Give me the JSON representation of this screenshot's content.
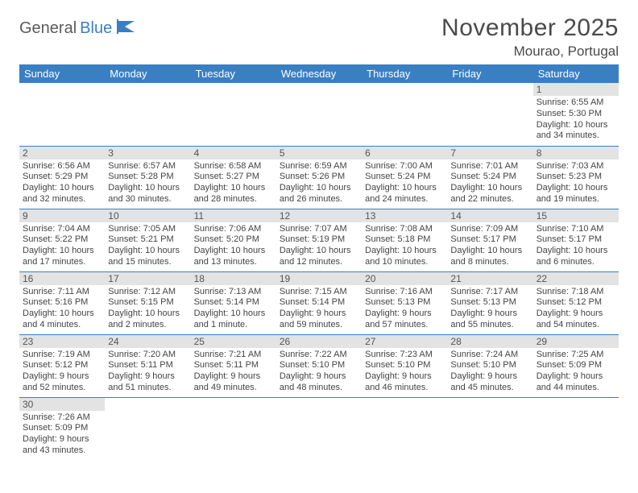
{
  "logo": {
    "text1": "General",
    "text2": "Blue"
  },
  "title": "November 2025",
  "location": "Mourao, Portugal",
  "weekdays": [
    "Sunday",
    "Monday",
    "Tuesday",
    "Wednesday",
    "Thursday",
    "Friday",
    "Saturday"
  ],
  "colors": {
    "header_bg": "#3a7fc2",
    "header_text": "#ffffff",
    "daynum_bg": "#e3e3e3",
    "rule": "#3a7fc2",
    "logo_gray": "#5b5b5b",
    "logo_blue": "#3a7fc2"
  },
  "days": [
    {
      "n": 1,
      "sunrise": "6:55 AM",
      "sunset": "5:30 PM",
      "daylight": "10 hours and 34 minutes."
    },
    {
      "n": 2,
      "sunrise": "6:56 AM",
      "sunset": "5:29 PM",
      "daylight": "10 hours and 32 minutes."
    },
    {
      "n": 3,
      "sunrise": "6:57 AM",
      "sunset": "5:28 PM",
      "daylight": "10 hours and 30 minutes."
    },
    {
      "n": 4,
      "sunrise": "6:58 AM",
      "sunset": "5:27 PM",
      "daylight": "10 hours and 28 minutes."
    },
    {
      "n": 5,
      "sunrise": "6:59 AM",
      "sunset": "5:26 PM",
      "daylight": "10 hours and 26 minutes."
    },
    {
      "n": 6,
      "sunrise": "7:00 AM",
      "sunset": "5:24 PM",
      "daylight": "10 hours and 24 minutes."
    },
    {
      "n": 7,
      "sunrise": "7:01 AM",
      "sunset": "5:24 PM",
      "daylight": "10 hours and 22 minutes."
    },
    {
      "n": 8,
      "sunrise": "7:03 AM",
      "sunset": "5:23 PM",
      "daylight": "10 hours and 19 minutes."
    },
    {
      "n": 9,
      "sunrise": "7:04 AM",
      "sunset": "5:22 PM",
      "daylight": "10 hours and 17 minutes."
    },
    {
      "n": 10,
      "sunrise": "7:05 AM",
      "sunset": "5:21 PM",
      "daylight": "10 hours and 15 minutes."
    },
    {
      "n": 11,
      "sunrise": "7:06 AM",
      "sunset": "5:20 PM",
      "daylight": "10 hours and 13 minutes."
    },
    {
      "n": 12,
      "sunrise": "7:07 AM",
      "sunset": "5:19 PM",
      "daylight": "10 hours and 12 minutes."
    },
    {
      "n": 13,
      "sunrise": "7:08 AM",
      "sunset": "5:18 PM",
      "daylight": "10 hours and 10 minutes."
    },
    {
      "n": 14,
      "sunrise": "7:09 AM",
      "sunset": "5:17 PM",
      "daylight": "10 hours and 8 minutes."
    },
    {
      "n": 15,
      "sunrise": "7:10 AM",
      "sunset": "5:17 PM",
      "daylight": "10 hours and 6 minutes."
    },
    {
      "n": 16,
      "sunrise": "7:11 AM",
      "sunset": "5:16 PM",
      "daylight": "10 hours and 4 minutes."
    },
    {
      "n": 17,
      "sunrise": "7:12 AM",
      "sunset": "5:15 PM",
      "daylight": "10 hours and 2 minutes."
    },
    {
      "n": 18,
      "sunrise": "7:13 AM",
      "sunset": "5:14 PM",
      "daylight": "10 hours and 1 minute."
    },
    {
      "n": 19,
      "sunrise": "7:15 AM",
      "sunset": "5:14 PM",
      "daylight": "9 hours and 59 minutes."
    },
    {
      "n": 20,
      "sunrise": "7:16 AM",
      "sunset": "5:13 PM",
      "daylight": "9 hours and 57 minutes."
    },
    {
      "n": 21,
      "sunrise": "7:17 AM",
      "sunset": "5:13 PM",
      "daylight": "9 hours and 55 minutes."
    },
    {
      "n": 22,
      "sunrise": "7:18 AM",
      "sunset": "5:12 PM",
      "daylight": "9 hours and 54 minutes."
    },
    {
      "n": 23,
      "sunrise": "7:19 AM",
      "sunset": "5:12 PM",
      "daylight": "9 hours and 52 minutes."
    },
    {
      "n": 24,
      "sunrise": "7:20 AM",
      "sunset": "5:11 PM",
      "daylight": "9 hours and 51 minutes."
    },
    {
      "n": 25,
      "sunrise": "7:21 AM",
      "sunset": "5:11 PM",
      "daylight": "9 hours and 49 minutes."
    },
    {
      "n": 26,
      "sunrise": "7:22 AM",
      "sunset": "5:10 PM",
      "daylight": "9 hours and 48 minutes."
    },
    {
      "n": 27,
      "sunrise": "7:23 AM",
      "sunset": "5:10 PM",
      "daylight": "9 hours and 46 minutes."
    },
    {
      "n": 28,
      "sunrise": "7:24 AM",
      "sunset": "5:10 PM",
      "daylight": "9 hours and 45 minutes."
    },
    {
      "n": 29,
      "sunrise": "7:25 AM",
      "sunset": "5:09 PM",
      "daylight": "9 hours and 44 minutes."
    },
    {
      "n": 30,
      "sunrise": "7:26 AM",
      "sunset": "5:09 PM",
      "daylight": "9 hours and 43 minutes."
    }
  ],
  "labels": {
    "sunrise": "Sunrise:",
    "sunset": "Sunset:",
    "daylight": "Daylight:"
  },
  "first_weekday_index": 6
}
